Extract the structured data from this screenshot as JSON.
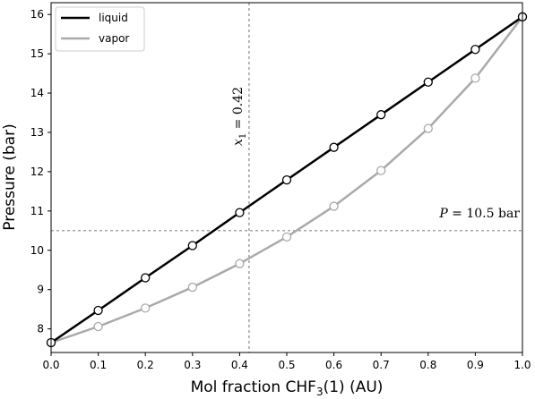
{
  "chart_data": {
    "type": "line",
    "xlabel": "Mol fraction CHF",
    "xlabel_sub": "3",
    "xlabel_tail": "(1) (AU)",
    "ylabel": "Pressure (bar)",
    "xlim": [
      0.0,
      1.0
    ],
    "ylim": [
      7.4,
      16.3
    ],
    "x_ticks": [
      0.0,
      0.1,
      0.2,
      0.3,
      0.4,
      0.5,
      0.6,
      0.7,
      0.8,
      0.9,
      1.0
    ],
    "x_tick_labels": [
      "0.0",
      "0.1",
      "0.2",
      "0.3",
      "0.4",
      "0.5",
      "0.6",
      "0.7",
      "0.8",
      "0.9",
      "1.0"
    ],
    "y_ticks": [
      8,
      9,
      10,
      11,
      12,
      13,
      14,
      15,
      16
    ],
    "y_tick_labels": [
      "8",
      "9",
      "10",
      "11",
      "12",
      "13",
      "14",
      "15",
      "16"
    ],
    "legend_position": "top-left",
    "grid": false,
    "series": [
      {
        "name": "liquid",
        "color": "#000000",
        "x": [
          0.0,
          0.1,
          0.2,
          0.3,
          0.4,
          0.5,
          0.6,
          0.7,
          0.8,
          0.9,
          1.0
        ],
        "y": [
          7.65,
          8.47,
          9.3,
          10.12,
          10.96,
          11.79,
          12.62,
          13.45,
          14.28,
          15.11,
          15.94
        ]
      },
      {
        "name": "vapor",
        "color": "#aaaaaa",
        "x": [
          0.0,
          0.1,
          0.2,
          0.3,
          0.4,
          0.5,
          0.6,
          0.7,
          0.8,
          0.9,
          1.0
        ],
        "y": [
          7.65,
          8.06,
          8.53,
          9.06,
          9.66,
          10.34,
          11.12,
          12.03,
          13.1,
          14.38,
          15.94
        ]
      }
    ],
    "annotations": {
      "vline": {
        "x": 0.42,
        "label_var": "x",
        "label_sub": "1",
        "label_rest": " = 0.42"
      },
      "hline": {
        "y": 10.5,
        "label_var": "P",
        "label_rest": " = 10.5 bar"
      }
    }
  }
}
